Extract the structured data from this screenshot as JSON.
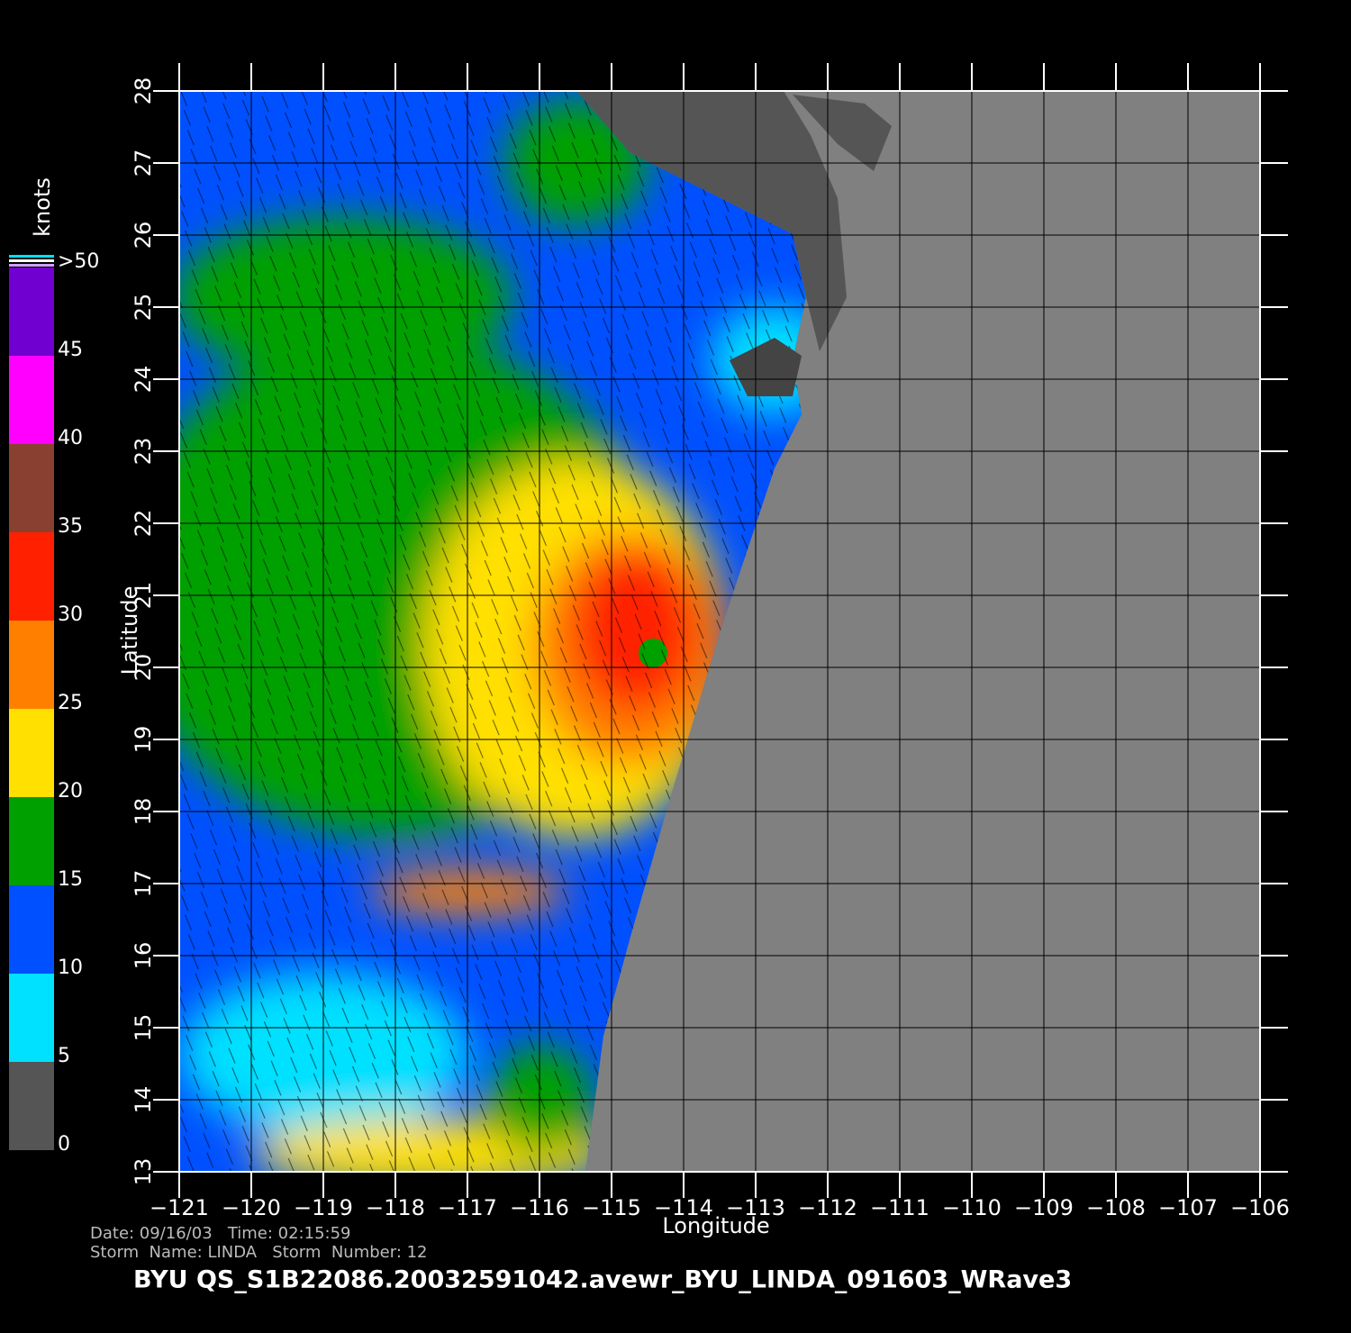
{
  "map": {
    "xaxis": {
      "label": "Longitude",
      "lim": [
        -121,
        -106
      ],
      "ticks": [
        {
          "value": -121,
          "label": "−121"
        },
        {
          "value": -120,
          "label": "−120"
        },
        {
          "value": -119,
          "label": "−119"
        },
        {
          "value": -118,
          "label": "−118"
        },
        {
          "value": -117,
          "label": "−117"
        },
        {
          "value": -116,
          "label": "−116"
        },
        {
          "value": -115,
          "label": "−115"
        },
        {
          "value": -114,
          "label": "−114"
        },
        {
          "value": -113,
          "label": "−113"
        },
        {
          "value": -112,
          "label": "−112"
        },
        {
          "value": -111,
          "label": "−111"
        },
        {
          "value": -110,
          "label": "−110"
        },
        {
          "value": -109,
          "label": "−109"
        },
        {
          "value": -108,
          "label": "−108"
        },
        {
          "value": -107,
          "label": "−107"
        },
        {
          "value": -106,
          "label": "−106"
        }
      ]
    },
    "yaxis": {
      "label": "Latitude",
      "lim": [
        13,
        28
      ],
      "ticks": [
        13,
        14,
        15,
        16,
        17,
        18,
        19,
        20,
        21,
        22,
        23,
        24,
        25,
        26,
        27,
        28
      ]
    },
    "colorbar": {
      "title": "knots",
      "lim": [
        0,
        50
      ],
      "ticks": [
        0,
        5,
        10,
        15,
        20,
        25,
        30,
        35,
        40,
        45,
        {
          "value": 50,
          "label": ">50"
        }
      ],
      "colors": [
        "#555555",
        "#00e0ff",
        "#0050ff",
        "#00a000",
        "#ffe000",
        "#ff8000",
        "#ff2000",
        "#8a4030",
        "#ff00ff",
        "#7000d0"
      ]
    },
    "info": [
      "Date: 09/16/03   Time: 02:15:59",
      "Storm  Name: LINDA   Storm  Number: 12"
    ],
    "footer": "BYU  QS_S1B22086.20032591042.avewr_BYU_LINDA_091603_WRave3"
  }
}
